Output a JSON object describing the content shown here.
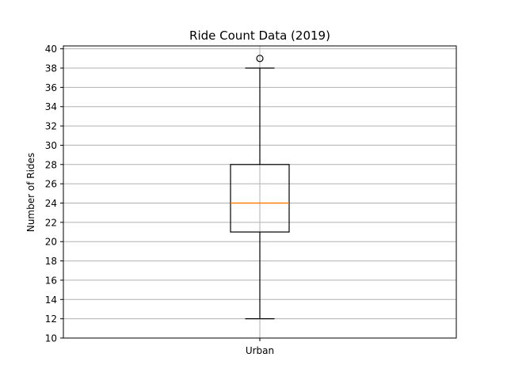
{
  "chart_data": {
    "type": "box",
    "title": "Ride Count Data (2019)",
    "xlabel": "",
    "ylabel": "Number of Rides",
    "categories": [
      "Urban"
    ],
    "boxes": [
      {
        "category": "Urban",
        "whisker_low": 12,
        "q1": 21,
        "median": 24,
        "q3": 28,
        "whisker_high": 38,
        "outliers": [
          39
        ]
      }
    ],
    "yticks": [
      10,
      12,
      14,
      16,
      18,
      20,
      22,
      24,
      26,
      28,
      30,
      32,
      34,
      36,
      38,
      40
    ],
    "ylim": [
      10,
      40.3
    ],
    "grid": true,
    "colors": {
      "median": "#ff7f0e",
      "grid": "#b0b0b0",
      "box": "#000000"
    }
  }
}
